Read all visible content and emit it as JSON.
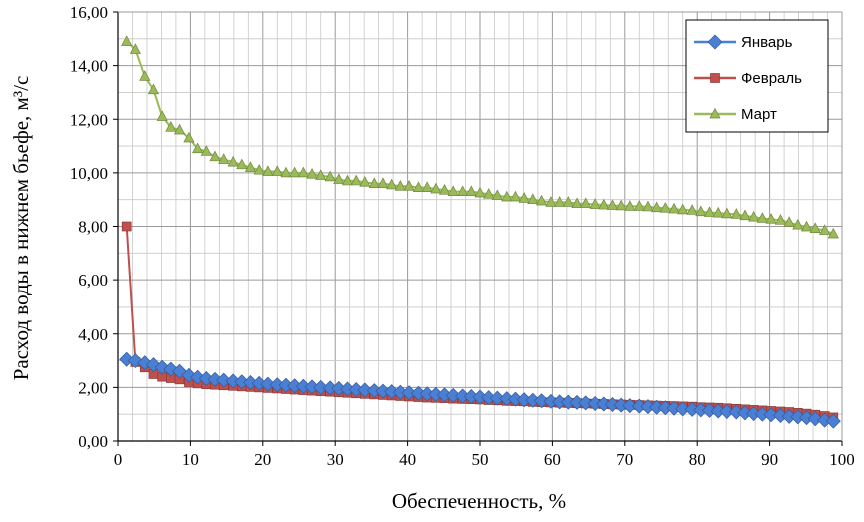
{
  "chart_data": {
    "type": "line",
    "title": "",
    "xlabel": "Обеспеченность, %",
    "ylabel": "Расход воды в нижнем бьефе, м³/с",
    "xlim": [
      0,
      100
    ],
    "ylim": [
      0,
      16
    ],
    "x_ticks": [
      0,
      10,
      20,
      30,
      40,
      50,
      60,
      70,
      80,
      90,
      100
    ],
    "x_tick_labels": [
      "0",
      "10",
      "20",
      "30",
      "40",
      "50",
      "60",
      "70",
      "80",
      "90",
      "100"
    ],
    "y_ticks": [
      0,
      2,
      4,
      6,
      8,
      10,
      12,
      14,
      16
    ],
    "y_tick_labels": [
      "0,00",
      "2,00",
      "4,00",
      "6,00",
      "8,00",
      "10,00",
      "12,00",
      "14,00",
      "16,00"
    ],
    "grid": true,
    "legend_position": "top-right",
    "series": [
      {
        "name": "Январь",
        "color": "#4a7fd4",
        "marker": "diamond",
        "x": [
          1.2,
          2.4,
          3.7,
          4.9,
          6.1,
          7.3,
          8.5,
          9.8,
          11,
          12.2,
          13.4,
          14.6,
          15.9,
          17.1,
          18.3,
          19.5,
          20.7,
          22,
          23.2,
          24.4,
          25.6,
          26.8,
          28,
          29.3,
          30.5,
          31.7,
          32.9,
          34.1,
          35.4,
          36.6,
          37.8,
          39,
          40.2,
          41.5,
          42.7,
          43.9,
          45.1,
          46.3,
          47.6,
          48.8,
          50,
          51.2,
          52.4,
          53.7,
          54.9,
          56.1,
          57.3,
          58.5,
          59.8,
          61,
          62.2,
          63.4,
          64.6,
          65.9,
          67.1,
          68.3,
          69.5,
          70.7,
          72,
          73.2,
          74.4,
          75.6,
          76.8,
          78,
          79.3,
          80.5,
          81.7,
          82.9,
          84.1,
          85.4,
          86.6,
          87.8,
          89,
          90.2,
          91.5,
          92.7,
          93.9,
          95.1,
          96.3,
          97.6,
          98.8
        ],
        "values": [
          3.05,
          3.0,
          2.92,
          2.85,
          2.75,
          2.68,
          2.6,
          2.45,
          2.38,
          2.33,
          2.3,
          2.27,
          2.24,
          2.21,
          2.18,
          2.15,
          2.12,
          2.1,
          2.08,
          2.06,
          2.04,
          2.02,
          2.0,
          1.98,
          1.96,
          1.94,
          1.92,
          1.9,
          1.88,
          1.86,
          1.84,
          1.82,
          1.8,
          1.78,
          1.76,
          1.74,
          1.72,
          1.7,
          1.68,
          1.66,
          1.64,
          1.62,
          1.6,
          1.58,
          1.56,
          1.54,
          1.52,
          1.5,
          1.48,
          1.46,
          1.45,
          1.44,
          1.42,
          1.4,
          1.38,
          1.36,
          1.34,
          1.32,
          1.3,
          1.28,
          1.26,
          1.24,
          1.22,
          1.2,
          1.18,
          1.16,
          1.14,
          1.12,
          1.1,
          1.08,
          1.05,
          1.02,
          1.0,
          0.98,
          0.95,
          0.92,
          0.9,
          0.87,
          0.83,
          0.78,
          0.74
        ]
      },
      {
        "name": "Февраль",
        "color": "#c0504d",
        "marker": "square",
        "x": [
          1.2,
          2.4,
          3.7,
          4.9,
          6.1,
          7.3,
          8.5,
          9.8,
          11,
          12.2,
          13.4,
          14.6,
          15.9,
          17.1,
          18.3,
          19.5,
          20.7,
          22,
          23.2,
          24.4,
          25.6,
          26.8,
          28,
          29.3,
          30.5,
          31.7,
          32.9,
          34.1,
          35.4,
          36.6,
          37.8,
          39,
          40.2,
          41.5,
          42.7,
          43.9,
          45.1,
          46.3,
          47.6,
          48.8,
          50,
          51.2,
          52.4,
          53.7,
          54.9,
          56.1,
          57.3,
          58.5,
          59.8,
          61,
          62.2,
          63.4,
          64.6,
          65.9,
          67.1,
          68.3,
          69.5,
          70.7,
          72,
          73.2,
          74.4,
          75.6,
          76.8,
          78,
          79.3,
          80.5,
          81.7,
          82.9,
          84.1,
          85.4,
          86.6,
          87.8,
          89,
          90.2,
          91.5,
          92.7,
          93.9,
          95.1,
          96.3,
          97.6,
          98.8
        ],
        "values": [
          8.0,
          2.95,
          2.75,
          2.5,
          2.4,
          2.35,
          2.3,
          2.2,
          2.15,
          2.12,
          2.1,
          2.08,
          2.06,
          2.04,
          2.02,
          2.0,
          1.98,
          1.96,
          1.94,
          1.92,
          1.9,
          1.88,
          1.86,
          1.84,
          1.82,
          1.8,
          1.78,
          1.76,
          1.74,
          1.72,
          1.7,
          1.68,
          1.66,
          1.64,
          1.62,
          1.61,
          1.6,
          1.58,
          1.57,
          1.56,
          1.55,
          1.53,
          1.52,
          1.5,
          1.49,
          1.48,
          1.46,
          1.45,
          1.44,
          1.43,
          1.42,
          1.41,
          1.4,
          1.39,
          1.38,
          1.37,
          1.36,
          1.35,
          1.34,
          1.33,
          1.32,
          1.31,
          1.3,
          1.29,
          1.28,
          1.26,
          1.25,
          1.24,
          1.22,
          1.2,
          1.18,
          1.16,
          1.14,
          1.12,
          1.1,
          1.08,
          1.05,
          1.02,
          0.98,
          0.93,
          0.88
        ]
      },
      {
        "name": "Март",
        "color": "#9bbb59",
        "marker": "triangle",
        "x": [
          1.2,
          2.4,
          3.7,
          4.9,
          6.1,
          7.3,
          8.5,
          9.8,
          11,
          12.2,
          13.4,
          14.6,
          15.9,
          17.1,
          18.3,
          19.5,
          20.7,
          22,
          23.2,
          24.4,
          25.6,
          26.8,
          28,
          29.3,
          30.5,
          31.7,
          32.9,
          34.1,
          35.4,
          36.6,
          37.8,
          39,
          40.2,
          41.5,
          42.7,
          43.9,
          45.1,
          46.3,
          47.6,
          48.8,
          50,
          51.2,
          52.4,
          53.7,
          54.9,
          56.1,
          57.3,
          58.5,
          59.8,
          61,
          62.2,
          63.4,
          64.6,
          65.9,
          67.1,
          68.3,
          69.5,
          70.7,
          72,
          73.2,
          74.4,
          75.6,
          76.8,
          78,
          79.3,
          80.5,
          81.7,
          82.9,
          84.1,
          85.4,
          86.6,
          87.8,
          89,
          90.2,
          91.5,
          92.7,
          93.9,
          95.1,
          96.3,
          97.6,
          98.8
        ],
        "values": [
          14.9,
          14.6,
          13.6,
          13.1,
          12.1,
          11.7,
          11.6,
          11.3,
          10.9,
          10.8,
          10.6,
          10.5,
          10.4,
          10.3,
          10.2,
          10.1,
          10.05,
          10.05,
          10.0,
          10.0,
          10.0,
          9.95,
          9.9,
          9.85,
          9.75,
          9.7,
          9.7,
          9.65,
          9.6,
          9.6,
          9.55,
          9.5,
          9.5,
          9.45,
          9.45,
          9.4,
          9.35,
          9.3,
          9.3,
          9.3,
          9.25,
          9.2,
          9.15,
          9.1,
          9.1,
          9.05,
          9.0,
          8.95,
          8.9,
          8.9,
          8.9,
          8.85,
          8.85,
          8.82,
          8.8,
          8.78,
          8.77,
          8.75,
          8.75,
          8.73,
          8.7,
          8.68,
          8.65,
          8.62,
          8.6,
          8.55,
          8.52,
          8.5,
          8.47,
          8.45,
          8.4,
          8.35,
          8.3,
          8.27,
          8.23,
          8.15,
          8.05,
          7.98,
          7.92,
          7.85,
          7.72
        ]
      }
    ]
  }
}
